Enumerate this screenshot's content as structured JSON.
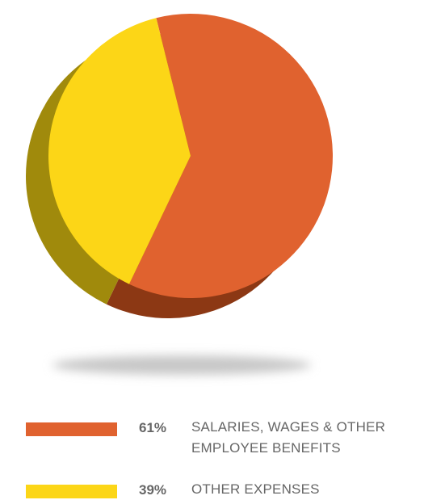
{
  "chart_data": {
    "type": "pie",
    "categories": [
      "SALARIES, WAGES & OTHER EMPLOYEE BENEFITS",
      "OTHER EXPENSES"
    ],
    "values": [
      61,
      39
    ],
    "value_labels": [
      "61%",
      "39%"
    ],
    "colors": [
      "#e0622f",
      "#fcd617"
    ],
    "depth_colors": [
      "#8c3814",
      "#a08a0c"
    ]
  }
}
